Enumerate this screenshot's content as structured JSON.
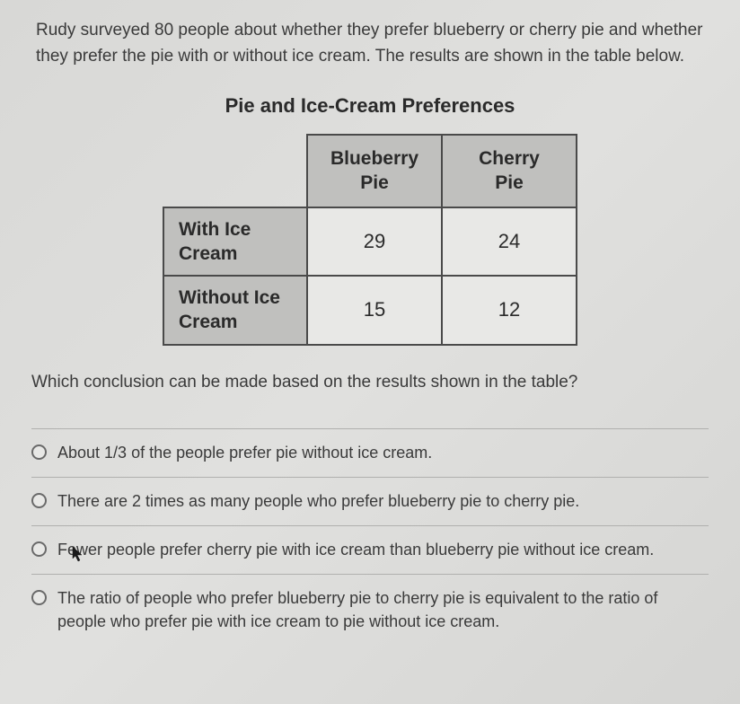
{
  "question": "Rudy surveyed 80 people about whether they prefer blueberry or cherry pie and whether they prefer the pie with or without ice cream. The results are shown in the table below.",
  "table": {
    "title": "Pie and Ice-Cream Preferences",
    "col_headers": [
      "Blueberry Pie",
      "Cherry Pie"
    ],
    "row_headers": [
      "With Ice Cream",
      "Without Ice Cream"
    ],
    "rows": [
      [
        29,
        24
      ],
      [
        15,
        12
      ]
    ],
    "header_bg": "#c0c0be",
    "cell_bg": "#e8e8e6",
    "border_color": "#4a4a4a"
  },
  "follow_up": "Which conclusion can be made based on the results shown in the table?",
  "options": [
    "About 1/3 of the people prefer pie without ice cream.",
    "There are 2 times as many people who prefer blueberry pie to cherry pie.",
    "Fewer people prefer cherry pie with ice cream than blueberry pie without ice cream.",
    "The ratio of people who prefer blueberry pie to cherry pie is equivalent to the ratio of people who prefer pie with ice cream to pie without ice cream."
  ]
}
